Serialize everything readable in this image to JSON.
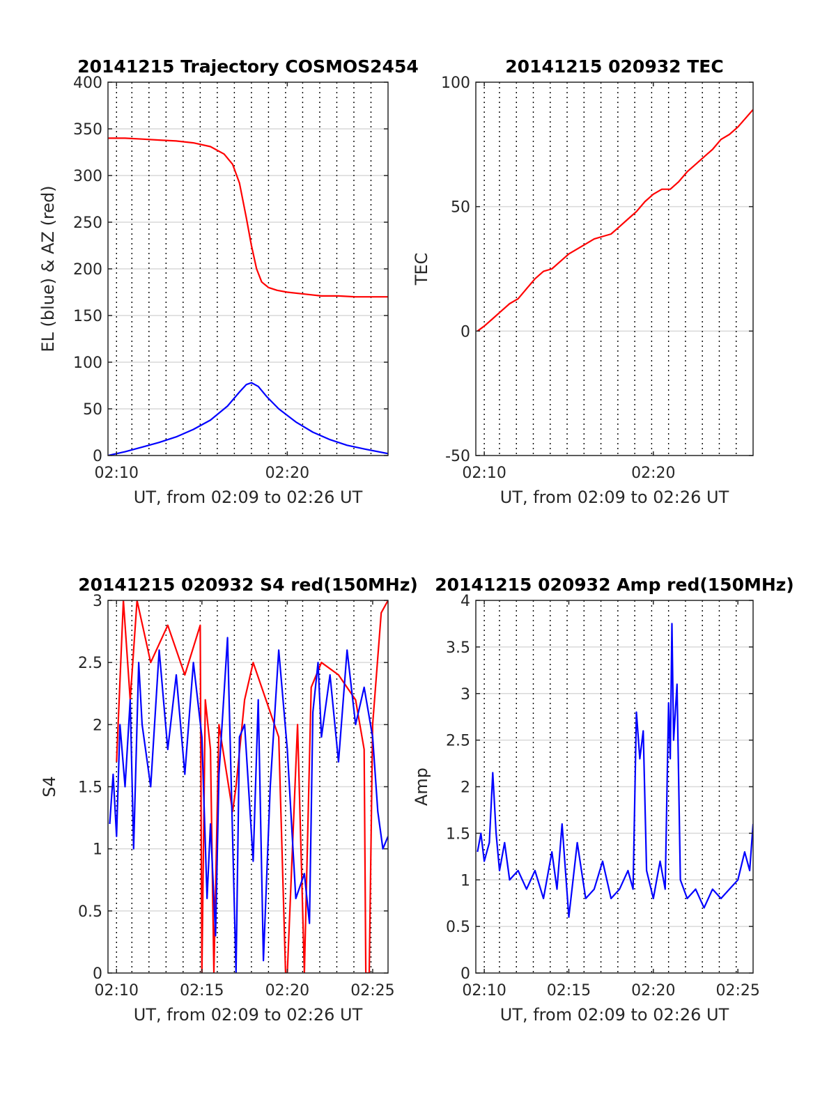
{
  "figure": {
    "colors": {
      "red": "#ff0000",
      "blue": "#0000ff",
      "grid": "#d9d9d9",
      "frame": "#262626"
    }
  },
  "chart_data": [
    {
      "type": "line",
      "title": "20141215 Trajectory COSMOS2454",
      "xlabel": "UT, from 02:09 to 02:26 UT",
      "ylabel": "EL (blue) & AZ (red)",
      "x_unit": "minutes after 02:00 UT",
      "xlim": [
        9.5,
        25.9
      ],
      "ylim": [
        0,
        400
      ],
      "xtick_values": [
        10,
        20
      ],
      "xtick_labels": [
        "02:10",
        "02:20"
      ],
      "ytick_values": [
        0,
        50,
        100,
        150,
        200,
        250,
        300,
        350,
        400
      ],
      "ytick_labels": [
        "0",
        "50",
        "100",
        "150",
        "200",
        "250",
        "300",
        "350",
        "400"
      ],
      "vgrid_values": [
        10.0,
        10.9,
        11.9,
        12.9,
        13.9,
        14.9,
        15.9,
        16.9,
        17.9,
        18.9,
        19.9,
        20.9,
        21.9,
        22.9,
        23.9,
        24.9
      ],
      "grid": "horizontal solid, vertical dotted",
      "series": [
        {
          "color": "#0000ff",
          "x": [
            9.5,
            10.5,
            11.5,
            12.5,
            13.5,
            14.5,
            15.5,
            16.5,
            17.2,
            17.6,
            17.9,
            18.3,
            18.8,
            19.5,
            20.5,
            21.5,
            22.5,
            23.5,
            24.5,
            25.9
          ],
          "y": [
            0,
            4,
            9,
            14,
            20,
            28,
            38,
            53,
            68,
            76,
            78,
            74,
            63,
            50,
            36,
            25,
            17,
            11,
            7,
            2
          ]
        },
        {
          "color": "#ff0000",
          "x": [
            9.5,
            10.5,
            11.5,
            12.5,
            13.5,
            14.5,
            15.5,
            16.3,
            16.8,
            17.2,
            17.6,
            17.9,
            18.2,
            18.5,
            18.9,
            19.4,
            20.0,
            21.0,
            22.0,
            23.0,
            24.0,
            25.9
          ],
          "y": [
            340,
            340,
            339,
            338,
            337,
            335,
            331,
            323,
            312,
            292,
            255,
            225,
            200,
            186,
            180,
            177,
            175,
            173,
            171,
            171,
            170,
            170
          ]
        }
      ]
    },
    {
      "type": "line",
      "title": "20141215 020932 TEC",
      "xlabel": "UT, from 02:09 to 02:26 UT",
      "ylabel": "TEC",
      "x_unit": "minutes after 02:00 UT",
      "xlim": [
        9.5,
        25.9
      ],
      "ylim": [
        -50,
        100
      ],
      "xtick_values": [
        10,
        20
      ],
      "xtick_labels": [
        "02:10",
        "02:20"
      ],
      "ytick_values": [
        -50,
        0,
        50,
        100
      ],
      "ytick_labels": [
        "-50",
        "0",
        "50",
        "100"
      ],
      "vgrid_values": [
        10.0,
        10.9,
        11.9,
        12.9,
        13.9,
        14.9,
        15.9,
        16.9,
        17.9,
        18.9,
        19.9,
        20.9,
        21.9,
        22.9,
        23.9,
        24.9
      ],
      "hgrid_values": [
        50,
        0
      ],
      "grid": "horizontal solid, vertical dotted",
      "series": [
        {
          "color": "#ff0000",
          "x": [
            9.6,
            10.0,
            10.5,
            11.0,
            11.5,
            12.0,
            12.5,
            13.0,
            13.5,
            14.0,
            14.5,
            15.0,
            15.5,
            16.0,
            16.5,
            17.0,
            17.5,
            18.0,
            18.5,
            19.0,
            19.5,
            20.0,
            20.5,
            21.0,
            21.5,
            22.0,
            22.5,
            23.0,
            23.5,
            24.0,
            24.5,
            25.0,
            25.9
          ],
          "y": [
            0,
            2,
            5,
            8,
            11,
            13,
            17,
            21,
            24,
            25,
            28,
            31,
            33,
            35,
            37,
            38,
            39,
            42,
            45,
            48,
            52,
            55,
            57,
            57,
            60,
            64,
            67,
            70,
            73,
            77,
            79,
            82,
            89
          ]
        }
      ]
    },
    {
      "type": "line",
      "title": "20141215 020932 S4 red(150MHz)",
      "xlabel": "UT, from 02:09 to 02:26 UT",
      "ylabel": "S4",
      "x_unit": "minutes after 02:00 UT",
      "xlim": [
        9.5,
        25.9
      ],
      "ylim": [
        0,
        3
      ],
      "xtick_values": [
        10,
        15,
        20,
        25
      ],
      "xtick_labels": [
        "02:10",
        "02:15",
        "02:20",
        "02:25"
      ],
      "ytick_values": [
        0,
        0.5,
        1,
        1.5,
        2,
        2.5,
        3
      ],
      "ytick_labels": [
        "0",
        "0.5",
        "1",
        "1.5",
        "2",
        "2.5",
        "3"
      ],
      "vgrid_values": [
        10.0,
        10.9,
        11.9,
        12.9,
        13.9,
        14.9,
        15.9,
        16.9,
        17.9,
        18.9,
        19.9,
        20.9,
        21.9,
        22.9,
        23.9,
        24.9
      ],
      "grid": "horizontal solid, vertical dotted",
      "series": [
        {
          "color": "#ff0000",
          "x": [
            10.0,
            10.4,
            10.8,
            11.2,
            12.0,
            13.0,
            14.0,
            14.9,
            15.0,
            15.2,
            15.5,
            15.7,
            16.0,
            16.8,
            17.0,
            17.5,
            18.0,
            19.5,
            19.9,
            20.0,
            20.6,
            21.0,
            21.4,
            22.0,
            23.0,
            24.0,
            24.5,
            24.6,
            24.8,
            25.0,
            25.5,
            25.9
          ],
          "y": [
            1.7,
            3.0,
            2.2,
            3.0,
            2.5,
            2.8,
            2.4,
            2.8,
            0.0,
            2.2,
            1.8,
            0.0,
            2.0,
            1.3,
            1.5,
            2.2,
            2.5,
            1.9,
            0.0,
            0.0,
            2.0,
            0.0,
            2.3,
            2.5,
            2.4,
            2.2,
            1.8,
            0.0,
            0.0,
            2.0,
            2.9,
            3.0
          ]
        },
        {
          "color": "#0000ff",
          "x": [
            9.6,
            9.8,
            10.0,
            10.2,
            10.5,
            10.8,
            11.0,
            11.3,
            11.5,
            12.0,
            12.5,
            13.0,
            13.5,
            14.0,
            14.5,
            15.0,
            15.3,
            15.5,
            15.8,
            16.0,
            16.5,
            17.0,
            17.2,
            17.5,
            18.0,
            18.3,
            18.6,
            19.0,
            19.5,
            20.0,
            20.5,
            21.0,
            21.3,
            21.5,
            21.8,
            22.0,
            22.5,
            23.0,
            23.5,
            24.0,
            24.5,
            25.0,
            25.3,
            25.6,
            25.9
          ],
          "y": [
            1.2,
            1.6,
            1.1,
            2.0,
            1.5,
            2.2,
            1.0,
            2.5,
            2.0,
            1.5,
            2.6,
            1.8,
            2.4,
            1.6,
            2.5,
            1.9,
            0.6,
            1.2,
            0.3,
            1.6,
            2.7,
            0.0,
            1.9,
            2.0,
            0.9,
            2.2,
            0.1,
            1.5,
            2.6,
            1.8,
            0.6,
            0.8,
            0.4,
            2.1,
            2.5,
            1.9,
            2.4,
            1.7,
            2.6,
            2.0,
            2.3,
            1.9,
            1.3,
            1.0,
            1.1
          ]
        }
      ]
    },
    {
      "type": "line",
      "title": "20141215 020932 Amp red(150MHz)",
      "xlabel": "UT, from 02:09 to 02:26 UT",
      "ylabel": "Amp",
      "x_unit": "minutes after 02:00 UT",
      "xlim": [
        9.5,
        25.9
      ],
      "ylim": [
        0,
        4
      ],
      "xtick_values": [
        10,
        15,
        20,
        25
      ],
      "xtick_labels": [
        "02:10",
        "02:15",
        "02:20",
        "02:25"
      ],
      "ytick_values": [
        0,
        0.5,
        1,
        1.5,
        2,
        2.5,
        3,
        3.5,
        4
      ],
      "ytick_labels": [
        "0",
        "0.5",
        "1",
        "1.5",
        "2",
        "2.5",
        "3",
        "3.5",
        "4"
      ],
      "vgrid_values": [
        10.0,
        10.9,
        11.9,
        12.9,
        13.9,
        14.9,
        15.9,
        16.9,
        17.9,
        18.9,
        19.9,
        20.9,
        21.9,
        22.9,
        23.9,
        24.9
      ],
      "grid": "horizontal solid, vertical dotted",
      "series": [
        {
          "color": "#0000ff",
          "x": [
            9.6,
            9.8,
            10.0,
            10.3,
            10.5,
            10.7,
            10.9,
            11.2,
            11.5,
            12.0,
            12.5,
            13.0,
            13.5,
            14.0,
            14.3,
            14.6,
            15.0,
            15.5,
            16.0,
            16.5,
            17.0,
            17.5,
            18.0,
            18.5,
            18.8,
            19.0,
            19.2,
            19.4,
            19.6,
            20.0,
            20.4,
            20.7,
            20.9,
            21.0,
            21.1,
            21.2,
            21.4,
            21.6,
            22.0,
            22.5,
            23.0,
            23.5,
            24.0,
            24.5,
            25.0,
            25.4,
            25.7,
            25.9
          ],
          "y": [
            1.3,
            1.5,
            1.2,
            1.4,
            2.15,
            1.5,
            1.1,
            1.4,
            1.0,
            1.1,
            0.9,
            1.1,
            0.8,
            1.3,
            0.9,
            1.6,
            0.6,
            1.4,
            0.8,
            0.9,
            1.2,
            0.8,
            0.9,
            1.1,
            0.9,
            2.8,
            2.3,
            2.6,
            1.1,
            0.8,
            1.2,
            0.9,
            2.9,
            2.3,
            3.75,
            2.5,
            3.1,
            1.0,
            0.8,
            0.9,
            0.7,
            0.9,
            0.8,
            0.9,
            1.0,
            1.3,
            1.1,
            1.6
          ]
        }
      ]
    }
  ]
}
